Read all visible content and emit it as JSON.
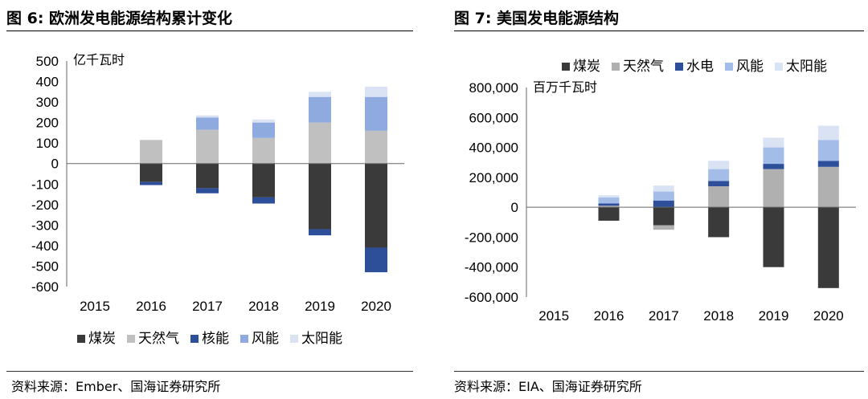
{
  "left": {
    "title": "图 6:  欧洲发电能源结构累计变化",
    "source": "资料来源：Ember、国海证券研究所"
  },
  "right": {
    "title": "图 7:  美国发电能源结构",
    "source": "资料来源：EIA、国海证券研究所"
  },
  "chart_data": [
    {
      "type": "bar",
      "stacked": true,
      "unit_label": "亿千瓦时",
      "categories": [
        "2015",
        "2016",
        "2017",
        "2018",
        "2019",
        "2020"
      ],
      "ylim": [
        -600,
        500
      ],
      "yticks": [
        500,
        400,
        300,
        200,
        100,
        0,
        -100,
        -200,
        -300,
        -400,
        -500,
        -600
      ],
      "legend_position": "bottom",
      "series": [
        {
          "name": "煤炭",
          "color": "#3a3a3a",
          "values": [
            0,
            -90,
            -120,
            -165,
            -320,
            -410
          ]
        },
        {
          "name": "天然气",
          "color": "#c0c0c0",
          "values": [
            0,
            115,
            165,
            125,
            200,
            160
          ]
        },
        {
          "name": "核能",
          "color": "#2d4f9a",
          "values": [
            0,
            -15,
            -25,
            -30,
            -30,
            -120
          ]
        },
        {
          "name": "风能",
          "color": "#8faadf",
          "values": [
            0,
            0,
            60,
            75,
            125,
            165
          ]
        },
        {
          "name": "太阳能",
          "color": "#dae3f4",
          "values": [
            0,
            0,
            10,
            15,
            25,
            50
          ]
        }
      ]
    },
    {
      "type": "bar",
      "stacked": true,
      "unit_label": "百万千瓦时",
      "categories": [
        "2015",
        "2016",
        "2017",
        "2018",
        "2019",
        "2020"
      ],
      "ylim": [
        -600000,
        800000
      ],
      "yticks": [
        "800,000",
        "600,000",
        "400,000",
        "200,000",
        "0",
        "-200,000",
        "-400,000",
        "-600,000"
      ],
      "legend_position": "top",
      "series": [
        {
          "name": "煤炭",
          "color": "#3a3a3a",
          "values": [
            0,
            -90000,
            -120000,
            -200000,
            -400000,
            -540000
          ]
        },
        {
          "name": "天然气",
          "color": "#b0b0b0",
          "values": [
            0,
            10000,
            -30000,
            140000,
            255000,
            270000
          ]
        },
        {
          "name": "水电",
          "color": "#2d4f9a",
          "values": [
            0,
            15000,
            45000,
            35000,
            35000,
            40000
          ]
        },
        {
          "name": "风能",
          "color": "#a4bde8",
          "values": [
            0,
            40000,
            60000,
            80000,
            110000,
            140000
          ]
        },
        {
          "name": "太阳能",
          "color": "#dae3f4",
          "values": [
            0,
            15000,
            40000,
            55000,
            65000,
            95000
          ]
        }
      ]
    }
  ]
}
